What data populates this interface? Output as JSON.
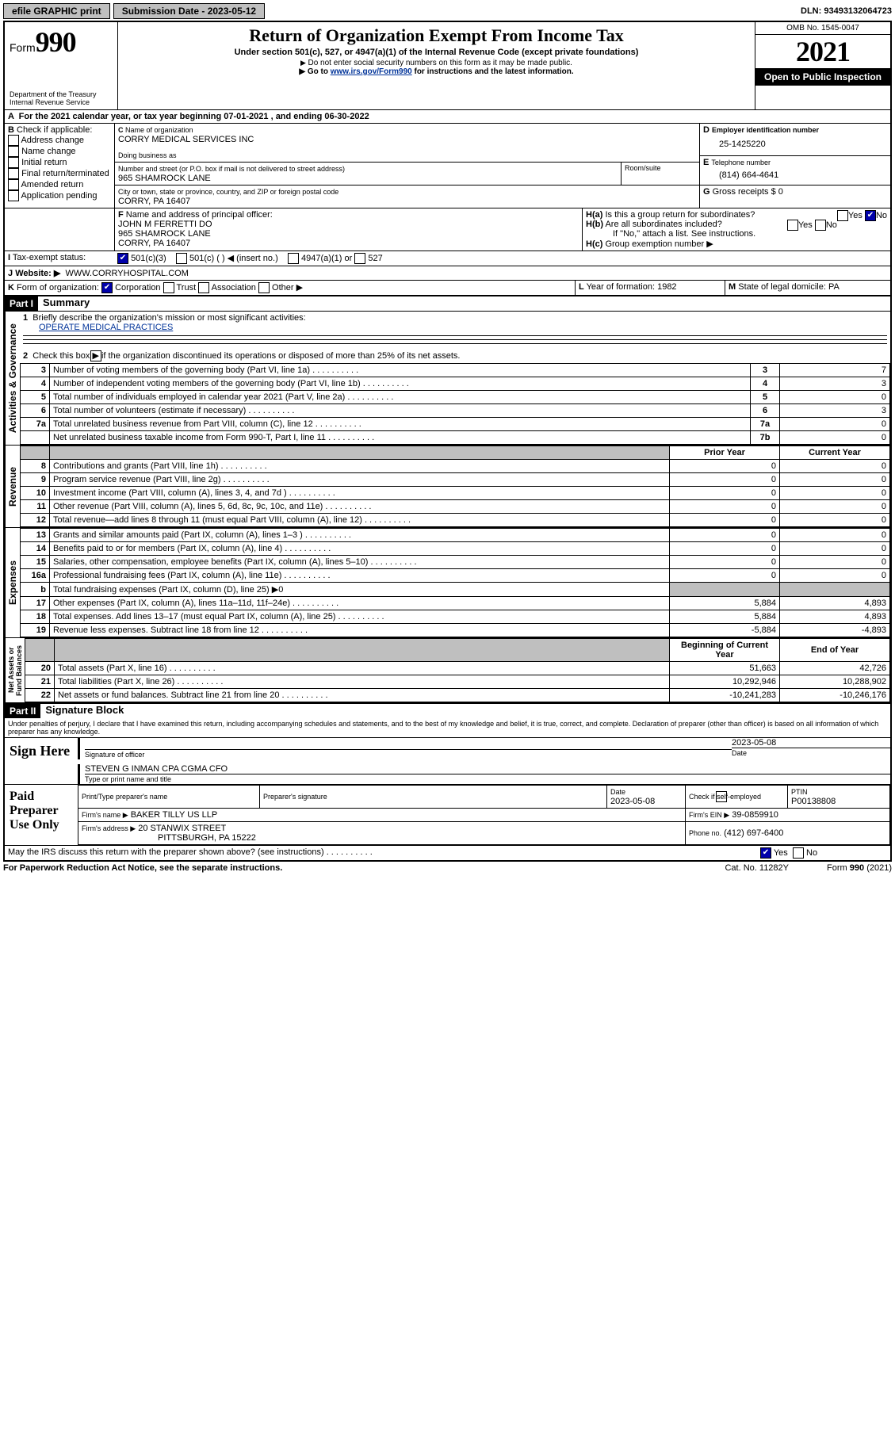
{
  "topbar": {
    "efile": "efile GRAPHIC print",
    "subdate_lbl": "Submission Date - 2023-05-12",
    "dln": "DLN: 93493132064723"
  },
  "header": {
    "form_word": "Form",
    "form_num": "990",
    "dept": "Department of the Treasury\nInternal Revenue Service",
    "title": "Return of Organization Exempt From Income Tax",
    "sub1": "Under section 501(c), 527, or 4947(a)(1) of the Internal Revenue Code (except private foundations)",
    "sub2": "Do not enter social security numbers on this form as it may be made public.",
    "sub3a": "Go to ",
    "sub3_link": "www.irs.gov/Form990",
    "sub3b": " for instructions and the latest information.",
    "omb": "OMB No. 1545-0047",
    "year": "2021",
    "open": "Open to Public Inspection"
  },
  "A_line": "For the 2021 calendar year, or tax year beginning 07-01-2021  , and ending 06-30-2022",
  "B": {
    "lbl": "Check if applicable:",
    "opts": [
      "Address change",
      "Name change",
      "Initial return",
      "Final return/terminated",
      "Amended return",
      "Application pending"
    ]
  },
  "C": {
    "name_lbl": "Name of organization",
    "name": "CORRY MEDICAL SERVICES INC",
    "dba_lbl": "Doing business as",
    "street_lbl": "Number and street (or P.O. box if mail is not delivered to street address)",
    "room_lbl": "Room/suite",
    "street": "965 SHAMROCK LANE",
    "city_lbl": "City or town, state or province, country, and ZIP or foreign postal code",
    "city": "CORRY, PA  16407"
  },
  "D": {
    "lbl": "Employer identification number",
    "val": "25-1425220"
  },
  "E": {
    "lbl": "Telephone number",
    "val": "(814) 664-4641"
  },
  "G": {
    "lbl": "Gross receipts $",
    "val": "0"
  },
  "F": {
    "lbl": "Name and address of principal officer:",
    "name": "JOHN M FERRETTI DO",
    "addr1": "965 SHAMROCK LANE",
    "addr2": "CORRY, PA  16407"
  },
  "H": {
    "a": "Is this a group return for subordinates?",
    "b": "Are all subordinates included?",
    "b_note": "If \"No,\" attach a list. See instructions.",
    "c": "Group exemption number ▶",
    "yes": "Yes",
    "no": "No"
  },
  "I": {
    "lbl": "Tax-exempt status:",
    "o1": "501(c)(3)",
    "o2": "501(c) (  ) ◀ (insert no.)",
    "o3": "4947(a)(1) or",
    "o4": "527"
  },
  "J": {
    "lbl": "Website: ▶",
    "val": "WWW.CORRYHOSPITAL.COM"
  },
  "K": {
    "lbl": "Form of organization:",
    "o1": "Corporation",
    "o2": "Trust",
    "o3": "Association",
    "o4": "Other ▶"
  },
  "L": {
    "lbl": "Year of formation:",
    "val": "1982"
  },
  "M": {
    "lbl": "State of legal domicile:",
    "val": "PA"
  },
  "partI": {
    "hdr": "Part I",
    "title": "Summary",
    "l1": "Briefly describe the organization's mission or most significant activities:",
    "l1val": "OPERATE MEDICAL PRACTICES",
    "l2": "Check this box ▶        if the organization discontinued its operations or disposed of more than 25% of its net assets.",
    "rows_single": [
      {
        "n": "3",
        "t": "Number of voting members of the governing body (Part VI, line 1a)",
        "box": "3",
        "v": "7"
      },
      {
        "n": "4",
        "t": "Number of independent voting members of the governing body (Part VI, line 1b)",
        "box": "4",
        "v": "3"
      },
      {
        "n": "5",
        "t": "Total number of individuals employed in calendar year 2021 (Part V, line 2a)",
        "box": "5",
        "v": "0"
      },
      {
        "n": "6",
        "t": "Total number of volunteers (estimate if necessary)",
        "box": "6",
        "v": "3"
      },
      {
        "n": "7a",
        "t": "Total unrelated business revenue from Part VIII, column (C), line 12",
        "box": "7a",
        "v": "0"
      },
      {
        "n": "",
        "t": "Net unrelated business taxable income from Form 990-T, Part I, line 11",
        "box": "7b",
        "v": "0"
      }
    ],
    "col_prior": "Prior Year",
    "col_curr": "Current Year",
    "rev": [
      {
        "n": "8",
        "t": "Contributions and grants (Part VIII, line 1h)",
        "p": "0",
        "c": "0"
      },
      {
        "n": "9",
        "t": "Program service revenue (Part VIII, line 2g)",
        "p": "0",
        "c": "0"
      },
      {
        "n": "10",
        "t": "Investment income (Part VIII, column (A), lines 3, 4, and 7d )",
        "p": "0",
        "c": "0"
      },
      {
        "n": "11",
        "t": "Other revenue (Part VIII, column (A), lines 5, 6d, 8c, 9c, 10c, and 11e)",
        "p": "0",
        "c": "0"
      },
      {
        "n": "12",
        "t": "Total revenue—add lines 8 through 11 (must equal Part VIII, column (A), line 12)",
        "p": "0",
        "c": "0"
      }
    ],
    "exp": [
      {
        "n": "13",
        "t": "Grants and similar amounts paid (Part IX, column (A), lines 1–3 )",
        "p": "0",
        "c": "0"
      },
      {
        "n": "14",
        "t": "Benefits paid to or for members (Part IX, column (A), line 4)",
        "p": "0",
        "c": "0"
      },
      {
        "n": "15",
        "t": "Salaries, other compensation, employee benefits (Part IX, column (A), lines 5–10)",
        "p": "0",
        "c": "0"
      },
      {
        "n": "16a",
        "t": "Professional fundraising fees (Part IX, column (A), line 11e)",
        "p": "0",
        "c": "0"
      }
    ],
    "exp_b": "Total fundraising expenses (Part IX, column (D), line 25) ▶0",
    "exp2": [
      {
        "n": "17",
        "t": "Other expenses (Part IX, column (A), lines 11a–11d, 11f–24e)",
        "p": "5,884",
        "c": "4,893"
      },
      {
        "n": "18",
        "t": "Total expenses. Add lines 13–17 (must equal Part IX, column (A), line 25)",
        "p": "5,884",
        "c": "4,893"
      },
      {
        "n": "19",
        "t": "Revenue less expenses. Subtract line 18 from line 12",
        "p": "-5,884",
        "c": "-4,893"
      }
    ],
    "col_beg": "Beginning of Current Year",
    "col_end": "End of Year",
    "na": [
      {
        "n": "20",
        "t": "Total assets (Part X, line 16)",
        "p": "51,663",
        "c": "42,726"
      },
      {
        "n": "21",
        "t": "Total liabilities (Part X, line 26)",
        "p": "10,292,946",
        "c": "10,288,902"
      },
      {
        "n": "22",
        "t": "Net assets or fund balances. Subtract line 21 from line 20",
        "p": "-10,241,283",
        "c": "-10,246,176"
      }
    ],
    "vlabs": {
      "gov": "Activities & Governance",
      "rev": "Revenue",
      "exp": "Expenses",
      "na": "Net Assets or\nFund Balances"
    }
  },
  "partII": {
    "hdr": "Part II",
    "title": "Signature Block",
    "decl": "Under penalties of perjury, I declare that I have examined this return, including accompanying schedules and statements, and to the best of my knowledge and belief, it is true, correct, and complete. Declaration of preparer (other than officer) is based on all information of which preparer has any knowledge.",
    "sign_here": "Sign Here",
    "sig_lbl": "Signature of officer",
    "date_lbl": "Date",
    "sig_date": "2023-05-08",
    "name": "STEVEN G INMAN CPA CGMA CFO",
    "name_lbl": "Type or print name and title",
    "paid": "Paid Preparer Use Only",
    "p_name_lbl": "Print/Type preparer's name",
    "p_sig_lbl": "Preparer's signature",
    "p_date_lbl": "Date",
    "p_date": "2023-05-08",
    "p_self": "Check        if self-employed",
    "ptin_lbl": "PTIN",
    "ptin": "P00138808",
    "firm_name_lbl": "Firm's name   ▶",
    "firm_name": "BAKER TILLY US LLP",
    "firm_ein_lbl": "Firm's EIN ▶",
    "firm_ein": "39-0859910",
    "firm_addr_lbl": "Firm's address ▶",
    "firm_addr1": "20 STANWIX STREET",
    "firm_addr2": "PITTSBURGH, PA  15222",
    "phone_lbl": "Phone no.",
    "phone": "(412) 697-6400",
    "discuss": "May the IRS discuss this return with the preparer shown above? (see instructions)"
  },
  "footer": {
    "pra": "For Paperwork Reduction Act Notice, see the separate instructions.",
    "cat": "Cat. No. 11282Y",
    "form": "Form 990 (2021)"
  }
}
